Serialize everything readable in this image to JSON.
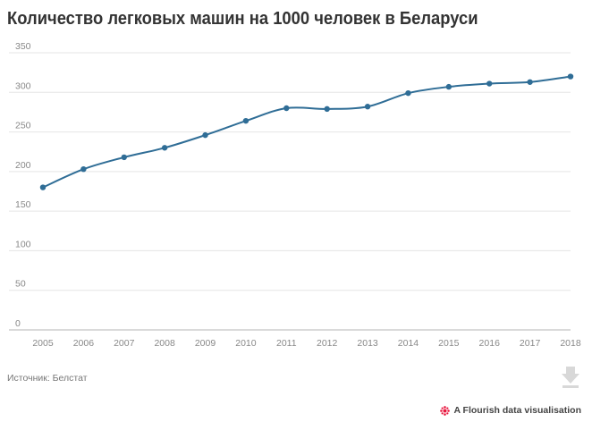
{
  "title": "Количество легковых машин на 1000 человек в Беларуси",
  "source": "Источник: Белстат",
  "credit": "A Flourish data visualisation",
  "colors": {
    "line": "#2f6d96",
    "grid": "#e5e5e5",
    "axis": "#b5b5b5",
    "logo": "#e8173f",
    "icon": "#d8d8d8"
  },
  "chart_data": {
    "type": "line",
    "title": "Количество легковых машин на 1000 человек в Беларуси",
    "xlabel": "",
    "ylabel": "",
    "x": [
      "2005",
      "2006",
      "2007",
      "2008",
      "2009",
      "2010",
      "2011",
      "2012",
      "2013",
      "2014",
      "2015",
      "2016",
      "2017",
      "2018"
    ],
    "series": [
      {
        "values": [
          180,
          203,
          218,
          230,
          246,
          264,
          280,
          279,
          282,
          299,
          307,
          311,
          313,
          320
        ]
      }
    ],
    "ylim": [
      0,
      350
    ],
    "yticks": [
      0,
      50,
      100,
      150,
      200,
      250,
      300,
      350
    ],
    "grid": true,
    "legend": "none"
  }
}
